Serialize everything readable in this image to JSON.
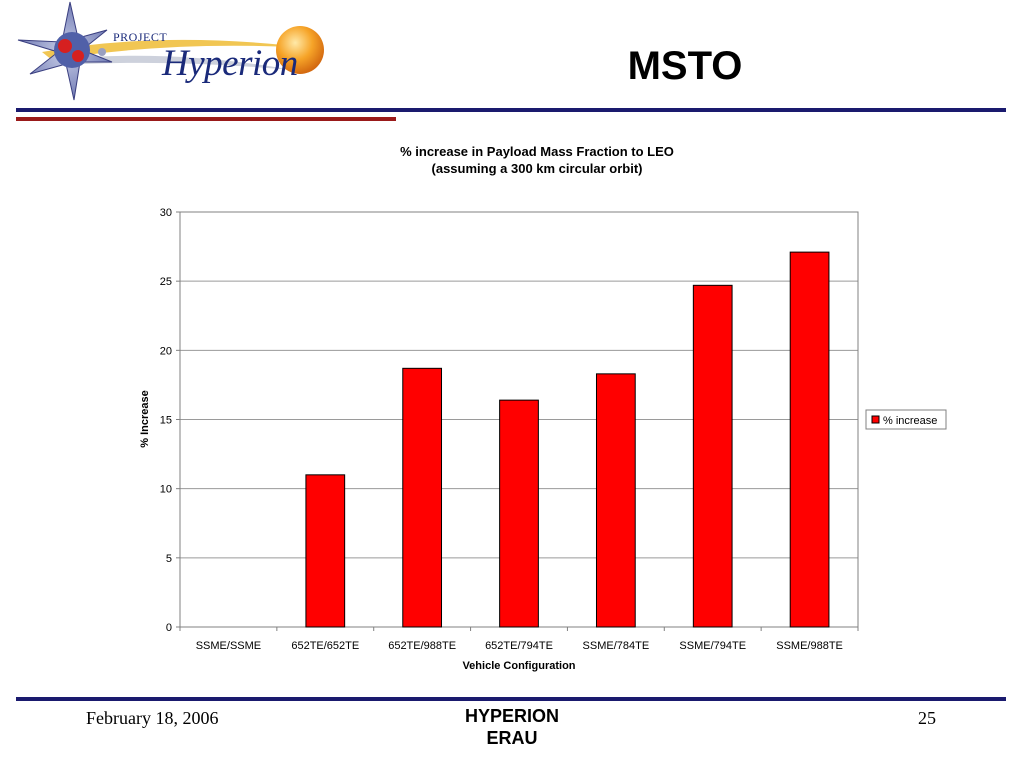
{
  "header": {
    "logo_project": "PROJECT",
    "logo_name": "Hyperion",
    "slide_title": "MSTO"
  },
  "footer": {
    "date": "February 18, 2006",
    "center_line1": "HYPERION",
    "center_line2": "ERAU",
    "page_number": "25"
  },
  "colors": {
    "bar_fill": "#ff0000",
    "navy_rule": "#1a1a6e",
    "red_rule": "#9a1a1a"
  },
  "chart_data": {
    "type": "bar",
    "title_line1": "% increase in Payload Mass Fraction to LEO",
    "title_line2": "(assuming a 300 km circular orbit)",
    "xlabel": "Vehicle Configuration",
    "ylabel": "% Increase",
    "ylim": [
      0,
      30
    ],
    "yticks": [
      0,
      5,
      10,
      15,
      20,
      25,
      30
    ],
    "grid": true,
    "legend_position": "right",
    "categories": [
      "SSME/SSME",
      "652TE/652TE",
      "652TE/988TE",
      "652TE/794TE",
      "SSME/784TE",
      "SSME/794TE",
      "SSME/988TE"
    ],
    "series": [
      {
        "name": "% increase",
        "values": [
          0,
          11.0,
          18.7,
          16.4,
          18.3,
          24.7,
          27.1
        ]
      }
    ]
  }
}
